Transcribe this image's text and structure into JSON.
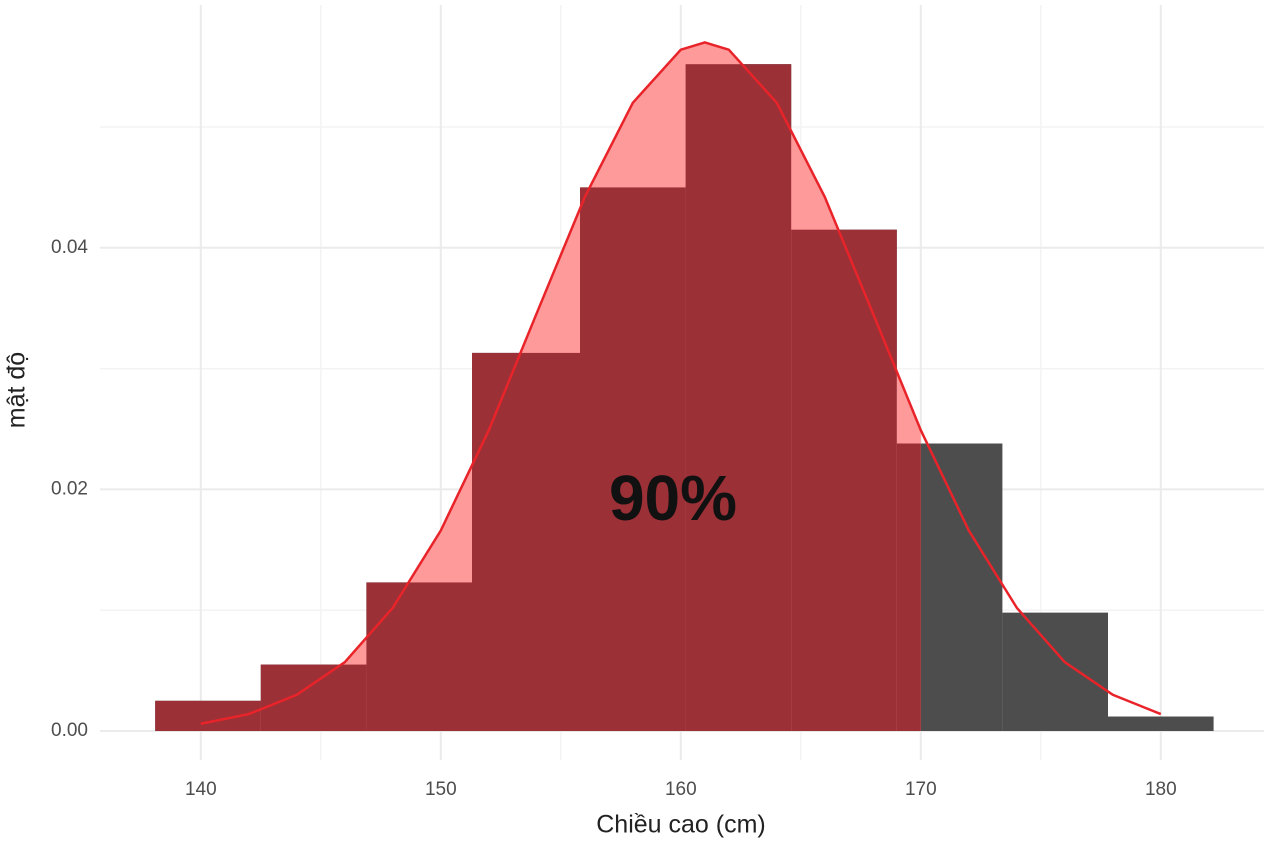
{
  "chart_data": {
    "type": "histogram",
    "x_label": "Chiều cao (cm)",
    "y_label": "mật độ",
    "bins": [
      138.1,
      142.5,
      146.9,
      151.3,
      155.8,
      160.2,
      164.6,
      169.0,
      173.4,
      177.8,
      182.2
    ],
    "values": [
      0.0025,
      0.0055,
      0.0123,
      0.0313,
      0.045,
      0.0552,
      0.0415,
      0.0238,
      0.0098,
      0.0012
    ],
    "color": "#4d4d4d",
    "curve": {
      "color": "#e8242a",
      "x": [
        140,
        142,
        144,
        146,
        148,
        150,
        152,
        154,
        156,
        158,
        160,
        161,
        162,
        164,
        166,
        168,
        170,
        172,
        174,
        176,
        178,
        180
      ],
      "values": [
        0.0006,
        0.0014,
        0.003,
        0.0057,
        0.0102,
        0.0166,
        0.0249,
        0.0346,
        0.0442,
        0.052,
        0.0564,
        0.057,
        0.0564,
        0.052,
        0.0442,
        0.0346,
        0.0249,
        0.0166,
        0.0102,
        0.0057,
        0.003,
        0.0014
      ]
    },
    "highlight": {
      "upper": 170,
      "label": "90%",
      "bar_color": "#9b3036",
      "area_color": "#ff9a9a"
    },
    "xlim": [
      135.8,
      184.3
    ],
    "ylim": [
      -0.0024,
      0.0601
    ],
    "xticks": [
      140,
      150,
      160,
      170,
      180
    ],
    "yticks": [
      {
        "value": 0,
        "label": "0.00"
      },
      {
        "value": 0.02,
        "label": "0.02"
      },
      {
        "value": 0.04,
        "label": "0.04"
      }
    ],
    "x_minor_ticks": [
      145,
      155,
      165,
      175
    ],
    "y_minor_ticks": [
      0.01,
      0.03,
      0.05
    ],
    "grid": true
  }
}
